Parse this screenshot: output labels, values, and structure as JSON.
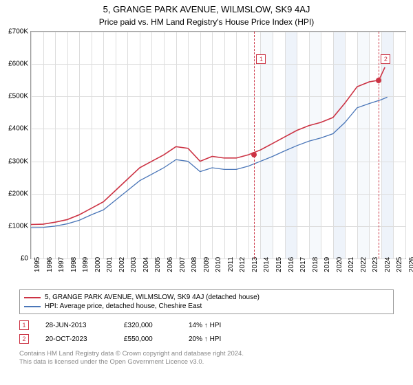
{
  "title": "5, GRANGE PARK AVENUE, WILMSLOW, SK9 4AJ",
  "subtitle": "Price paid vs. HM Land Registry's House Price Index (HPI)",
  "chart": {
    "ylim": [
      0,
      700000
    ],
    "ytick_step": 100000,
    "yticks": [
      "£0",
      "£100K",
      "£200K",
      "£300K",
      "£400K",
      "£500K",
      "£600K",
      "£700K"
    ],
    "xlim": [
      1995,
      2026
    ],
    "xticks": [
      1995,
      1996,
      1997,
      1998,
      1999,
      2000,
      2001,
      2002,
      2003,
      2004,
      2005,
      2006,
      2007,
      2008,
      2009,
      2010,
      2011,
      2012,
      2013,
      2014,
      2015,
      2016,
      2017,
      2018,
      2019,
      2020,
      2021,
      2022,
      2023,
      2024,
      2025,
      2026
    ],
    "grid_color": "#dddddd",
    "background_color": "#ffffff",
    "shade_start_year": 2013.5,
    "series": [
      {
        "key": "address",
        "color": "#cc3344",
        "width": 1.6,
        "points": [
          [
            1995,
            105000
          ],
          [
            1996,
            106000
          ],
          [
            1997,
            112000
          ],
          [
            1998,
            120000
          ],
          [
            1999,
            135000
          ],
          [
            2000,
            155000
          ],
          [
            2001,
            175000
          ],
          [
            2002,
            210000
          ],
          [
            2003,
            245000
          ],
          [
            2004,
            280000
          ],
          [
            2005,
            300000
          ],
          [
            2006,
            320000
          ],
          [
            2007,
            345000
          ],
          [
            2008,
            340000
          ],
          [
            2009,
            300000
          ],
          [
            2010,
            315000
          ],
          [
            2011,
            310000
          ],
          [
            2012,
            310000
          ],
          [
            2013,
            320000
          ],
          [
            2014,
            335000
          ],
          [
            2015,
            355000
          ],
          [
            2016,
            375000
          ],
          [
            2017,
            395000
          ],
          [
            2018,
            410000
          ],
          [
            2019,
            420000
          ],
          [
            2020,
            435000
          ],
          [
            2021,
            480000
          ],
          [
            2022,
            530000
          ],
          [
            2023,
            545000
          ],
          [
            2023.8,
            550000
          ],
          [
            2024.3,
            590000
          ]
        ]
      },
      {
        "key": "hpi",
        "color": "#4a76b8",
        "width": 1.3,
        "points": [
          [
            1995,
            95000
          ],
          [
            1996,
            96000
          ],
          [
            1997,
            100000
          ],
          [
            1998,
            107000
          ],
          [
            1999,
            118000
          ],
          [
            2000,
            135000
          ],
          [
            2001,
            150000
          ],
          [
            2002,
            180000
          ],
          [
            2003,
            210000
          ],
          [
            2004,
            240000
          ],
          [
            2005,
            260000
          ],
          [
            2006,
            280000
          ],
          [
            2007,
            305000
          ],
          [
            2008,
            300000
          ],
          [
            2009,
            268000
          ],
          [
            2010,
            280000
          ],
          [
            2011,
            275000
          ],
          [
            2012,
            275000
          ],
          [
            2013,
            285000
          ],
          [
            2014,
            300000
          ],
          [
            2015,
            315000
          ],
          [
            2016,
            332000
          ],
          [
            2017,
            348000
          ],
          [
            2018,
            362000
          ],
          [
            2019,
            372000
          ],
          [
            2020,
            385000
          ],
          [
            2021,
            420000
          ],
          [
            2022,
            465000
          ],
          [
            2023,
            478000
          ],
          [
            2024,
            490000
          ],
          [
            2024.5,
            498000
          ]
        ]
      }
    ],
    "events": [
      {
        "n": "1",
        "year": 2013.49,
        "price": 320000,
        "badge_top_pct": 10
      },
      {
        "n": "2",
        "year": 2023.8,
        "price": 550000,
        "badge_top_pct": 10
      }
    ]
  },
  "legend": {
    "items": [
      {
        "color": "#cc3344",
        "label": "5, GRANGE PARK AVENUE, WILMSLOW, SK9 4AJ (detached house)"
      },
      {
        "color": "#4a76b8",
        "label": "HPI: Average price, detached house, Cheshire East"
      }
    ]
  },
  "event_table": [
    {
      "n": "1",
      "date": "28-JUN-2013",
      "price": "£320,000",
      "hpi": "14% ↑ HPI"
    },
    {
      "n": "2",
      "date": "20-OCT-2023",
      "price": "£550,000",
      "hpi": "20% ↑ HPI"
    }
  ],
  "attribution": {
    "line1": "Contains HM Land Registry data © Crown copyright and database right 2024.",
    "line2": "This data is licensed under the Open Government Licence v3.0."
  }
}
